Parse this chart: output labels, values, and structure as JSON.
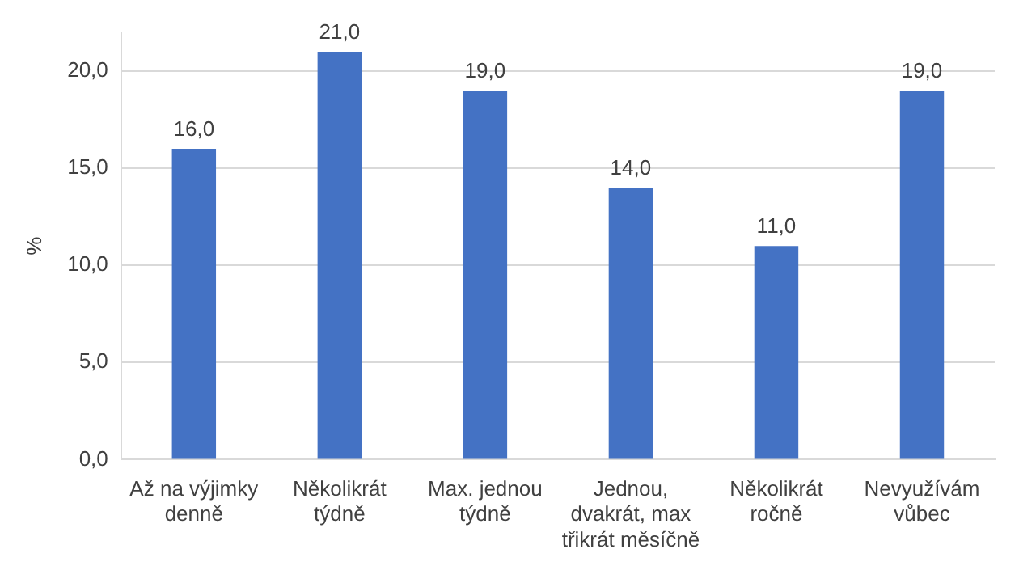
{
  "chart_data": {
    "type": "bar",
    "ylabel": "%",
    "categories": [
      "Až na výjimky denně",
      "Několikrát týdně",
      "Max. jednou týdně",
      "Jednou, dvakrát, max třikrát měsíčně",
      "Několikrát ročně",
      "Nevyužívám vůbec"
    ],
    "values": [
      16,
      21,
      19,
      14,
      11,
      19
    ],
    "value_labels": [
      "16,0",
      "21,0",
      "19,0",
      "14,0",
      "11,0",
      "19,0"
    ],
    "color": "#4472c4",
    "ylim": [
      0,
      22
    ],
    "yticks": [
      {
        "value": 0,
        "label": "0,0"
      },
      {
        "value": 5,
        "label": "5,0"
      },
      {
        "value": 10,
        "label": "10,0"
      },
      {
        "value": 15,
        "label": "15,0"
      },
      {
        "value": 20,
        "label": "20,0"
      }
    ],
    "grid": "y",
    "legend": false
  }
}
